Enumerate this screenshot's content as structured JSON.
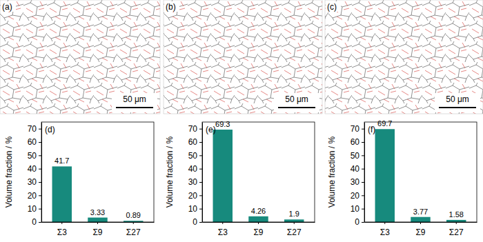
{
  "maps": [
    {
      "label": "(a)",
      "scale_bar": "50 μm"
    },
    {
      "label": "(b)",
      "scale_bar": "50 μm"
    },
    {
      "label": "(c)",
      "scale_bar": "50 μm"
    }
  ],
  "chart_data": [
    {
      "type": "bar",
      "title": "(d)",
      "y_label": "Volume fraction / %",
      "categories": [
        "Σ3",
        "Σ9",
        "Σ27"
      ],
      "values": [
        41.7,
        3.33,
        0.89
      ],
      "color": "#178a7d",
      "ylim": [
        0,
        75
      ],
      "yticks": [
        0,
        10,
        20,
        30,
        40,
        50,
        60,
        70
      ],
      "data_labels": true,
      "grid": false
    },
    {
      "type": "bar",
      "title": "(e)",
      "y_label": "Volume fraction / %",
      "categories": [
        "Σ3",
        "Σ9",
        "Σ27"
      ],
      "values": [
        69.3,
        4.26,
        1.9
      ],
      "color": "#178a7d",
      "ylim": [
        0,
        75
      ],
      "yticks": [
        0,
        10,
        20,
        30,
        40,
        50,
        60,
        70
      ],
      "data_labels": true,
      "grid": false
    },
    {
      "type": "bar",
      "title": "(f)",
      "y_label": "Volume fraction / %",
      "categories": [
        "Σ3",
        "Σ9",
        "Σ27"
      ],
      "values": [
        69.7,
        3.77,
        1.58
      ],
      "color": "#178a7d",
      "ylim": [
        0,
        75
      ],
      "yticks": [
        0,
        10,
        20,
        30,
        40,
        50,
        60,
        70
      ],
      "data_labels": true,
      "grid": false
    }
  ]
}
